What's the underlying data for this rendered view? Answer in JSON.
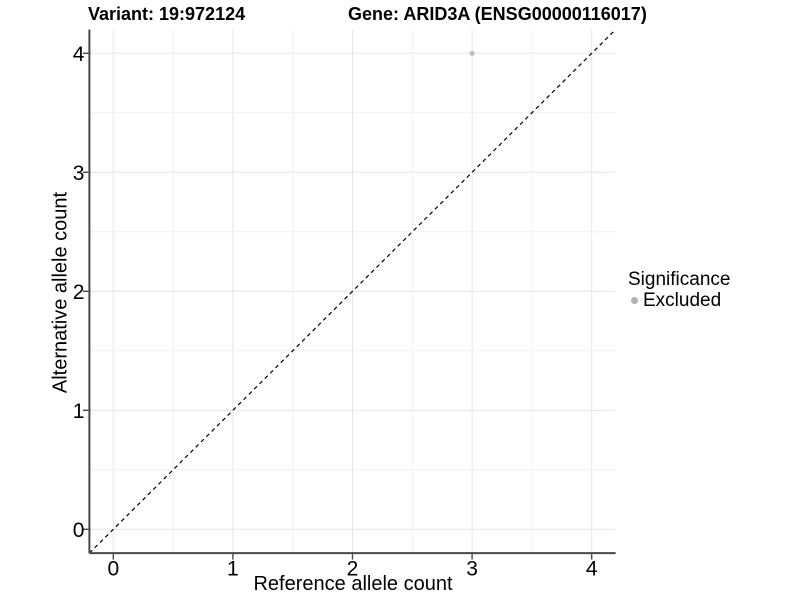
{
  "titles": {
    "variant": "Variant: 19:972124",
    "gene": "Gene: ARID3A (ENSG00000116017)"
  },
  "chart_data": {
    "type": "scatter",
    "xlabel": "Reference allele count",
    "ylabel": "Alternative allele count",
    "xlim": [
      -0.2,
      4.2
    ],
    "ylim": [
      -0.2,
      4.2
    ],
    "xticks": [
      0,
      1,
      2,
      3,
      4
    ],
    "yticks": [
      0,
      1,
      2,
      3,
      4
    ],
    "grid": {
      "on": true,
      "step": 0.5,
      "major_color": "#e6e6e6",
      "minor_color": "#f1f1f1",
      "background": "#ffffff"
    },
    "identity_line": {
      "style": "dashed",
      "color": "#000000",
      "x1": -0.2,
      "y1": -0.2,
      "x2": 4.2,
      "y2": 4.2
    },
    "series": [
      {
        "name": "Excluded",
        "color": "#bdbdbd",
        "points": [
          {
            "x": 3,
            "y": 4
          }
        ]
      }
    ],
    "legend": {
      "title": "Significance",
      "position": "right",
      "items": [
        {
          "label": "Excluded",
          "color": "#b3b3b3"
        }
      ]
    },
    "axis_style": {
      "line_color": "#474747",
      "tick_color": "#474747",
      "text_color": "#000000"
    }
  }
}
